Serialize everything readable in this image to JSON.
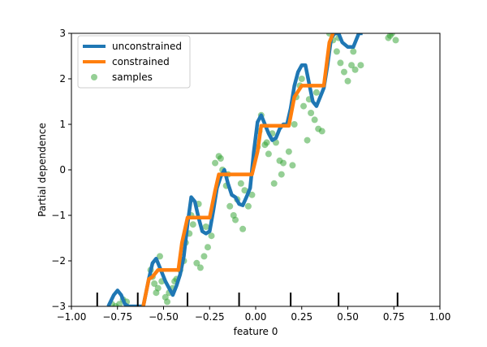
{
  "chart_data": {
    "type": "line",
    "title": "",
    "xlabel": "feature 0",
    "ylabel": "Partial dependence",
    "xlim": [
      -1.0,
      1.0
    ],
    "ylim": [
      -3,
      3
    ],
    "xticks": [
      -1.0,
      -0.75,
      -0.5,
      -0.25,
      0.0,
      0.25,
      0.5,
      0.75,
      1.0
    ],
    "xtick_labels": [
      "−1.00",
      "−0.75",
      "−0.50",
      "−0.25",
      "0.00",
      "0.25",
      "0.50",
      "0.75",
      "1.00"
    ],
    "yticks": [
      -3,
      -2,
      -1,
      0,
      1,
      2,
      3
    ],
    "ytick_labels": [
      "−3",
      "−2",
      "−1",
      "0",
      "1",
      "2",
      "3"
    ],
    "legend_position": "top-left",
    "series": [
      {
        "name": "unconstrained",
        "color": "#1f77b4",
        "x": [
          -0.8,
          -0.77,
          -0.75,
          -0.73,
          -0.71,
          -0.69,
          -0.61,
          -0.58,
          -0.56,
          -0.54,
          -0.52,
          -0.49,
          -0.47,
          -0.45,
          -0.43,
          -0.41,
          -0.39,
          -0.37,
          -0.35,
          -0.33,
          -0.31,
          -0.29,
          -0.27,
          -0.25,
          -0.23,
          -0.21,
          -0.19,
          -0.17,
          -0.15,
          -0.13,
          -0.11,
          -0.09,
          -0.07,
          -0.05,
          -0.03,
          -0.01,
          0.01,
          0.03,
          0.05,
          0.07,
          0.09,
          0.11,
          0.13,
          0.15,
          0.17,
          0.19,
          0.21,
          0.23,
          0.25,
          0.27,
          0.29,
          0.31,
          0.33,
          0.35,
          0.37,
          0.39,
          0.41,
          0.43,
          0.45,
          0.47,
          0.5,
          0.53,
          0.56,
          0.58
        ],
        "values": [
          -3.0,
          -2.75,
          -2.65,
          -2.75,
          -2.95,
          -3.0,
          -3.0,
          -2.4,
          -2.05,
          -1.95,
          -2.15,
          -2.45,
          -2.6,
          -2.75,
          -2.55,
          -2.3,
          -1.9,
          -1.2,
          -0.6,
          -0.7,
          -1.05,
          -1.35,
          -1.4,
          -1.35,
          -0.9,
          -0.4,
          -0.15,
          0.0,
          -0.3,
          -0.55,
          -0.6,
          -0.75,
          -0.78,
          -0.6,
          -0.4,
          0.4,
          1.05,
          1.2,
          1.0,
          0.8,
          0.65,
          0.7,
          0.9,
          1.0,
          1.0,
          1.35,
          1.85,
          2.15,
          2.3,
          2.3,
          1.9,
          1.5,
          1.4,
          1.6,
          1.8,
          2.3,
          2.9,
          3.0,
          3.0,
          2.8,
          2.7,
          2.7,
          3.0,
          3.0
        ]
      },
      {
        "name": "constrained",
        "color": "#ff7f0e",
        "x": [
          -0.61,
          -0.58,
          -0.56,
          -0.53,
          -0.5,
          -0.45,
          -0.42,
          -0.4,
          -0.37,
          -0.36,
          -0.3,
          -0.25,
          -0.22,
          -0.2,
          -0.15,
          -0.12,
          -0.1,
          -0.06,
          -0.02,
          0.01,
          0.03,
          0.07,
          0.1,
          0.14,
          0.18,
          0.21,
          0.25,
          0.28,
          0.31,
          0.37,
          0.4,
          0.42
        ],
        "values": [
          -3.0,
          -2.4,
          -2.35,
          -2.2,
          -2.2,
          -2.2,
          -2.2,
          -1.6,
          -1.05,
          -1.05,
          -1.05,
          -1.05,
          -0.45,
          -0.1,
          -0.1,
          -0.1,
          -0.1,
          -0.1,
          -0.1,
          0.4,
          0.97,
          0.97,
          0.97,
          0.97,
          0.97,
          1.6,
          1.85,
          1.85,
          1.85,
          1.85,
          2.8,
          3.0
        ]
      }
    ],
    "samples": {
      "name": "samples",
      "color": "#2ca02c",
      "x": [
        -0.76,
        -0.74,
        -0.72,
        -0.7,
        -0.78,
        -0.57,
        -0.56,
        -0.55,
        -0.54,
        -0.53,
        -0.51,
        -0.49,
        -0.47,
        -0.45,
        -0.43,
        -0.41,
        -0.39,
        -0.52,
        -0.48,
        -0.44,
        -0.38,
        -0.36,
        -0.34,
        -0.32,
        -0.3,
        -0.28,
        -0.26,
        -0.24,
        -0.35,
        -0.31,
        -0.27,
        -0.22,
        -0.2,
        -0.18,
        -0.16,
        -0.14,
        -0.12,
        -0.1,
        -0.08,
        -0.06,
        -0.19,
        -0.15,
        -0.11,
        -0.07,
        -0.04,
        -0.02,
        0.01,
        0.03,
        0.05,
        0.07,
        0.09,
        0.11,
        0.13,
        0.15,
        0.02,
        0.06,
        0.1,
        0.14,
        0.18,
        0.2,
        0.22,
        0.24,
        0.26,
        0.28,
        0.3,
        0.32,
        0.34,
        0.36,
        0.21,
        0.25,
        0.29,
        0.33,
        0.4,
        0.42,
        0.44,
        0.46,
        0.48,
        0.5,
        0.52,
        0.54,
        0.45,
        0.53,
        0.57,
        0.72,
        0.74,
        0.76,
        0.73
      ],
      "values": [
        -3.0,
        -2.95,
        -2.85,
        -2.9,
        -2.95,
        -2.2,
        -2.35,
        -2.5,
        -2.7,
        -2.6,
        -2.45,
        -2.8,
        -2.7,
        -2.6,
        -2.4,
        -2.2,
        -2.0,
        -1.9,
        -2.9,
        -2.45,
        -1.6,
        -1.4,
        -1.2,
        -2.05,
        -2.15,
        -1.9,
        -1.7,
        -1.45,
        -1.0,
        -0.75,
        -1.25,
        0.15,
        0.3,
        0.0,
        -0.35,
        -0.8,
        -1.0,
        -0.65,
        -0.3,
        -0.45,
        0.25,
        -0.1,
        -1.1,
        -1.3,
        -0.8,
        -0.55,
        0.5,
        1.2,
        0.55,
        0.35,
        0.8,
        0.6,
        0.2,
        0.15,
        0.85,
        0.6,
        -0.3,
        -0.1,
        0.4,
        0.1,
        1.6,
        1.85,
        1.4,
        0.65,
        1.25,
        1.1,
        0.9,
        0.85,
        1.0,
        2.0,
        1.55,
        1.7,
        3.0,
        2.85,
        2.6,
        2.35,
        2.15,
        1.95,
        2.3,
        2.2,
        2.9,
        2.6,
        2.3,
        2.9,
        3.0,
        2.85,
        2.95
      ]
    },
    "rug_x": [
      -0.86,
      -0.64,
      -0.37,
      -0.09,
      0.19,
      0.45,
      0.77
    ]
  }
}
